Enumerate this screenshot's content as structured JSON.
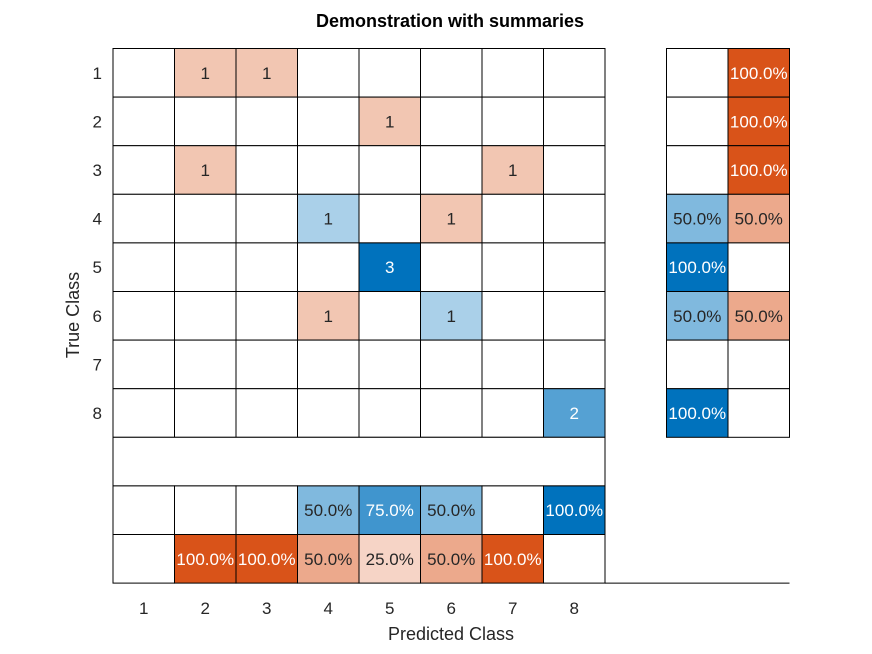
{
  "chart_data": {
    "type": "heatmap",
    "title": "Demonstration with summaries",
    "xlabel": "Predicted Class",
    "ylabel": "True Class",
    "classes": [
      "1",
      "2",
      "3",
      "4",
      "5",
      "6",
      "7",
      "8"
    ],
    "matrix": [
      [
        0,
        1,
        1,
        0,
        0,
        0,
        0,
        0
      ],
      [
        0,
        0,
        0,
        0,
        1,
        0,
        0,
        0
      ],
      [
        0,
        1,
        0,
        0,
        0,
        0,
        1,
        0
      ],
      [
        0,
        0,
        0,
        1,
        0,
        1,
        0,
        0
      ],
      [
        0,
        0,
        0,
        0,
        3,
        0,
        0,
        0
      ],
      [
        0,
        0,
        0,
        1,
        0,
        1,
        0,
        0
      ],
      [
        0,
        0,
        0,
        0,
        0,
        0,
        0,
        0
      ],
      [
        0,
        0,
        0,
        0,
        0,
        0,
        0,
        2
      ]
    ],
    "row_summary": {
      "correct": [
        "",
        "",
        "",
        "50.0%",
        "100.0%",
        "50.0%",
        "",
        "100.0%"
      ],
      "incorrect": [
        "100.0%",
        "100.0%",
        "100.0%",
        "50.0%",
        "",
        "50.0%",
        "",
        ""
      ]
    },
    "column_summary": {
      "correct": [
        "",
        "",
        "",
        "50.0%",
        "75.0%",
        "50.0%",
        "",
        "100.0%"
      ],
      "incorrect": [
        "",
        "100.0%",
        "100.0%",
        "50.0%",
        "25.0%",
        "50.0%",
        "100.0%",
        ""
      ]
    },
    "colors": {
      "correct": "#0072BD",
      "incorrect": "#D95319",
      "grid": "#000000",
      "light_text": "#ffffff",
      "dark_text": "#262626"
    }
  }
}
